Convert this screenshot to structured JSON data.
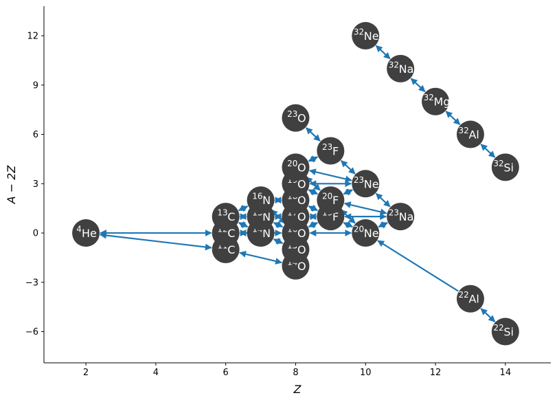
{
  "chart_data": {
    "type": "network",
    "xlabel": "Z",
    "ylabel": "A − 2Z",
    "xlim": [
      0.8,
      15.3
    ],
    "ylim": [
      -7.9,
      13.8
    ],
    "xticks": [
      2,
      4,
      6,
      8,
      10,
      12,
      14
    ],
    "yticks": [
      -6,
      -3,
      0,
      3,
      6,
      9,
      12
    ],
    "ytick_labels": [
      "−6",
      "−3",
      "0",
      "3",
      "6",
      "9",
      "12"
    ],
    "colors": {
      "node": "#404040",
      "edge": "#1f77b4",
      "text": "#ffffff"
    },
    "nodes": [
      {
        "id": "He4",
        "A": "4",
        "sym": "He",
        "Z": 2,
        "N2Z": 0
      },
      {
        "id": "C11",
        "A": "11",
        "sym": "C",
        "Z": 6,
        "N2Z": -1
      },
      {
        "id": "C12",
        "A": "12",
        "sym": "C",
        "Z": 6,
        "N2Z": 0
      },
      {
        "id": "C13",
        "A": "13",
        "sym": "C",
        "Z": 6,
        "N2Z": 1
      },
      {
        "id": "N14",
        "A": "14",
        "sym": "N",
        "Z": 7,
        "N2Z": 0
      },
      {
        "id": "N15",
        "A": "15",
        "sym": "N",
        "Z": 7,
        "N2Z": 1
      },
      {
        "id": "N16",
        "A": "16",
        "sym": "N",
        "Z": 7,
        "N2Z": 2
      },
      {
        "id": "O14",
        "A": "14",
        "sym": "O",
        "Z": 8,
        "N2Z": -2
      },
      {
        "id": "O15",
        "A": "15",
        "sym": "O",
        "Z": 8,
        "N2Z": -1
      },
      {
        "id": "O16",
        "A": "16",
        "sym": "O",
        "Z": 8,
        "N2Z": 0
      },
      {
        "id": "O17",
        "A": "17",
        "sym": "O",
        "Z": 8,
        "N2Z": 1
      },
      {
        "id": "O18",
        "A": "18",
        "sym": "O",
        "Z": 8,
        "N2Z": 2
      },
      {
        "id": "O19",
        "A": "19",
        "sym": "O",
        "Z": 8,
        "N2Z": 3
      },
      {
        "id": "O20",
        "A": "20",
        "sym": "O",
        "Z": 8,
        "N2Z": 4
      },
      {
        "id": "O23",
        "A": "23",
        "sym": "O",
        "Z": 8,
        "N2Z": 7
      },
      {
        "id": "F19",
        "A": "19",
        "sym": "F",
        "Z": 9,
        "N2Z": 1
      },
      {
        "id": "F20",
        "A": "20",
        "sym": "F",
        "Z": 9,
        "N2Z": 2
      },
      {
        "id": "F23",
        "A": "23",
        "sym": "F",
        "Z": 9,
        "N2Z": 5
      },
      {
        "id": "Ne20",
        "A": "20",
        "sym": "Ne",
        "Z": 10,
        "N2Z": 0
      },
      {
        "id": "Ne23",
        "A": "23",
        "sym": "Ne",
        "Z": 10,
        "N2Z": 3
      },
      {
        "id": "Ne32",
        "A": "32",
        "sym": "Ne",
        "Z": 10,
        "N2Z": 12
      },
      {
        "id": "Na23",
        "A": "23",
        "sym": "Na",
        "Z": 11,
        "N2Z": 1
      },
      {
        "id": "Na32",
        "A": "32",
        "sym": "Na",
        "Z": 11,
        "N2Z": 10
      },
      {
        "id": "Mg32",
        "A": "32",
        "sym": "Mg",
        "Z": 12,
        "N2Z": 8
      },
      {
        "id": "Al22",
        "A": "22",
        "sym": "Al",
        "Z": 13,
        "N2Z": -4
      },
      {
        "id": "Al32",
        "A": "32",
        "sym": "Al",
        "Z": 13,
        "N2Z": 6
      },
      {
        "id": "Si22",
        "A": "22",
        "sym": "Si",
        "Z": 14,
        "N2Z": -6
      },
      {
        "id": "Si32",
        "A": "32",
        "sym": "Si",
        "Z": 14,
        "N2Z": 4
      }
    ],
    "edges": [
      {
        "from": "He4",
        "to": "C12",
        "two_way": true
      },
      {
        "from": "He4",
        "to": "C11",
        "two_way": true
      },
      {
        "from": "C11",
        "to": "O14",
        "two_way": true
      },
      {
        "from": "C12",
        "to": "N14",
        "two_way": true
      },
      {
        "from": "C12",
        "to": "C13",
        "two_way": true
      },
      {
        "from": "C12",
        "to": "O16",
        "two_way": true
      },
      {
        "from": "C13",
        "to": "N14",
        "two_way": true
      },
      {
        "from": "C13",
        "to": "N15",
        "two_way": true
      },
      {
        "from": "C13",
        "to": "N16",
        "two_way": true
      },
      {
        "from": "N14",
        "to": "O15",
        "two_way": true
      },
      {
        "from": "N14",
        "to": "N15",
        "two_way": true
      },
      {
        "from": "N15",
        "to": "O16",
        "two_way": true
      },
      {
        "from": "N15",
        "to": "O17",
        "two_way": true
      },
      {
        "from": "N16",
        "to": "O16",
        "two_way": true
      },
      {
        "from": "N16",
        "to": "O18",
        "two_way": true
      },
      {
        "from": "O14",
        "to": "O15",
        "two_way": true
      },
      {
        "from": "O15",
        "to": "O16",
        "two_way": true
      },
      {
        "from": "O16",
        "to": "O17",
        "two_way": true
      },
      {
        "from": "O17",
        "to": "O18",
        "two_way": true
      },
      {
        "from": "O18",
        "to": "O19",
        "two_way": true
      },
      {
        "from": "O19",
        "to": "O20",
        "two_way": true
      },
      {
        "from": "O16",
        "to": "F19",
        "two_way": true
      },
      {
        "from": "O17",
        "to": "F19",
        "two_way": true
      },
      {
        "from": "O18",
        "to": "F19",
        "two_way": true
      },
      {
        "from": "O19",
        "to": "F20",
        "two_way": true
      },
      {
        "from": "O20",
        "to": "F20",
        "two_way": true
      },
      {
        "from": "O20",
        "to": "F23",
        "two_way": true
      },
      {
        "from": "O16",
        "to": "Ne20",
        "two_way": true
      },
      {
        "from": "O19",
        "to": "Ne23",
        "two_way": true
      },
      {
        "from": "O20",
        "to": "Ne23",
        "two_way": true
      },
      {
        "from": "O23",
        "to": "F23",
        "two_way": true
      },
      {
        "from": "F19",
        "to": "Ne20",
        "two_way": true
      },
      {
        "from": "F19",
        "to": "Na23",
        "two_way": true
      },
      {
        "from": "F20",
        "to": "Ne20",
        "two_way": true
      },
      {
        "from": "F20",
        "to": "Ne23",
        "two_way": true
      },
      {
        "from": "F20",
        "to": "Na23",
        "two_way": true
      },
      {
        "from": "F23",
        "to": "Ne23",
        "two_way": true
      },
      {
        "from": "Ne20",
        "to": "Na23",
        "two_way": true
      },
      {
        "from": "Ne23",
        "to": "Na23",
        "two_way": true
      },
      {
        "from": "Al22",
        "to": "Ne20",
        "two_way": false
      },
      {
        "from": "Al22",
        "to": "Si22",
        "two_way": true
      },
      {
        "from": "Ne32",
        "to": "Na32",
        "two_way": true
      },
      {
        "from": "Na32",
        "to": "Mg32",
        "two_way": true
      },
      {
        "from": "Mg32",
        "to": "Al32",
        "two_way": true
      },
      {
        "from": "Al32",
        "to": "Si32",
        "two_way": true
      }
    ]
  }
}
